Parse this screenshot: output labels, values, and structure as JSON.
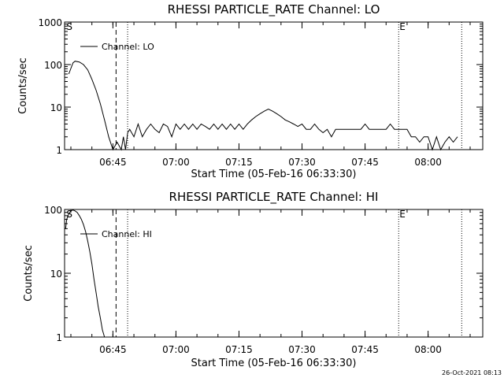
{
  "chart_data": [
    {
      "type": "line",
      "title": "RHESSI PARTICLE_RATE Channel: LO",
      "xlabel": "Start Time (05-Feb-16 06:33:30)",
      "ylabel": "Counts/sec",
      "yscale": "log",
      "ylim": [
        1,
        1000
      ],
      "xlim": [
        "06:33:30",
        "08:13:00"
      ],
      "xticks": [
        "06:45",
        "07:00",
        "07:15",
        "07:30",
        "07:45",
        "08:00"
      ],
      "yticks": [
        "1",
        "10",
        "100",
        "1000"
      ],
      "legend": "top-left",
      "series": [
        {
          "name": "Channel: LO",
          "x": [
            "06:34:30",
            "06:35:30",
            "06:36:00",
            "06:37:00",
            "06:38:00",
            "06:39:00",
            "06:40:00",
            "06:41:00",
            "06:42:00",
            "06:43:00",
            "06:44:00",
            "06:45:00",
            "06:46:00",
            "06:47:00",
            "06:47:30",
            "06:48:00",
            "06:48:30",
            "06:49:00",
            "06:50:00",
            "06:51:00",
            "06:52:00",
            "06:53:00",
            "06:54:00",
            "06:55:00",
            "06:56:00",
            "06:57:00",
            "06:58:00",
            "06:59:00",
            "07:00:00",
            "07:01:00",
            "07:02:00",
            "07:03:00",
            "07:04:00",
            "07:05:00",
            "07:06:00",
            "07:07:00",
            "07:08:00",
            "07:09:00",
            "07:10:00",
            "07:11:00",
            "07:12:00",
            "07:13:00",
            "07:14:00",
            "07:15:00",
            "07:16:00",
            "07:17:00",
            "07:18:00",
            "07:19:00",
            "07:20:00",
            "07:21:00",
            "07:22:00",
            "07:23:00",
            "07:24:00",
            "07:25:00",
            "07:26:00",
            "07:27:00",
            "07:28:00",
            "07:29:00",
            "07:30:00",
            "07:31:00",
            "07:32:00",
            "07:33:00",
            "07:34:00",
            "07:35:00",
            "07:36:00",
            "07:37:00",
            "07:38:00",
            "07:39:00",
            "07:40:00",
            "07:41:00",
            "07:42:00",
            "07:43:00",
            "07:44:00",
            "07:45:00",
            "07:46:00",
            "07:47:00",
            "07:48:00",
            "07:49:00",
            "07:50:00",
            "07:51:00",
            "07:52:00",
            "07:53:00",
            "07:54:00",
            "07:55:00",
            "07:56:00",
            "07:57:00",
            "07:58:00",
            "07:59:00",
            "08:00:00",
            "08:01:00",
            "08:02:00",
            "08:03:00",
            "08:04:00",
            "08:05:00",
            "08:06:00",
            "08:07:00"
          ],
          "y": [
            60,
            110,
            120,
            115,
            100,
            75,
            45,
            25,
            12,
            5,
            2,
            1,
            1.5,
            1,
            2,
            1,
            2.5,
            3,
            2,
            4,
            2,
            3,
            4,
            3,
            2.5,
            4,
            3.5,
            2,
            4,
            3,
            4,
            3,
            4,
            3,
            4,
            3.5,
            3,
            4,
            3,
            4,
            3,
            4,
            3,
            4,
            3,
            4,
            5,
            6,
            7,
            8,
            9,
            8,
            7,
            6,
            5,
            4.5,
            4,
            3.5,
            4,
            3,
            3,
            4,
            3,
            2.5,
            3,
            2,
            3,
            3,
            3,
            3,
            3,
            3,
            3,
            4,
            3,
            3,
            3,
            3,
            3,
            4,
            3,
            3,
            3,
            3,
            2,
            2,
            1.5,
            2,
            2,
            1,
            2,
            1,
            1.5,
            2,
            1.5,
            2
          ]
        }
      ],
      "markers": [
        {
          "label": "S",
          "time": "06:33:45",
          "style": "text"
        },
        {
          "label": "E",
          "time": "07:53:00",
          "style": "text"
        }
      ],
      "vlines": [
        {
          "time": "06:45:45",
          "style": "dashed"
        },
        {
          "time": "06:48:30",
          "style": "dotted"
        },
        {
          "time": "07:53:00",
          "style": "dotted"
        },
        {
          "time": "08:08:00",
          "style": "dotted"
        }
      ]
    },
    {
      "type": "line",
      "title": "RHESSI PARTICLE_RATE Channel: HI",
      "xlabel": "Start Time (05-Feb-16 06:33:30)",
      "ylabel": "Counts/sec",
      "yscale": "log",
      "ylim": [
        1,
        100
      ],
      "xlim": [
        "06:33:30",
        "08:13:00"
      ],
      "xticks": [
        "06:45",
        "07:00",
        "07:15",
        "07:30",
        "07:45",
        "08:00"
      ],
      "yticks": [
        "1",
        "10",
        "100"
      ],
      "legend": "top-left",
      "series": [
        {
          "name": "Channel: HI",
          "x": [
            "06:33:45",
            "06:34:00",
            "06:34:30",
            "06:35:00",
            "06:35:30",
            "06:36:00",
            "06:36:30",
            "06:37:00",
            "06:37:30",
            "06:38:00",
            "06:38:30",
            "06:39:00",
            "06:39:30",
            "06:40:00",
            "06:40:30",
            "06:41:00",
            "06:41:30",
            "06:42:00",
            "06:42:30",
            "06:43:00"
          ],
          "y": [
            50,
            70,
            85,
            95,
            98,
            95,
            90,
            80,
            70,
            58,
            45,
            32,
            22,
            14,
            8,
            5,
            3,
            2,
            1.3,
            1
          ]
        }
      ],
      "markers": [
        {
          "label": "S",
          "time": "06:33:45",
          "style": "text"
        },
        {
          "label": "E",
          "time": "07:53:00",
          "style": "text"
        }
      ],
      "vlines": [
        {
          "time": "06:45:45",
          "style": "dashed"
        },
        {
          "time": "06:48:30",
          "style": "dotted"
        },
        {
          "time": "07:53:00",
          "style": "dotted"
        },
        {
          "time": "08:08:00",
          "style": "dotted"
        }
      ]
    }
  ],
  "footer": {
    "timestamp": "26-Oct-2021 08:13"
  }
}
